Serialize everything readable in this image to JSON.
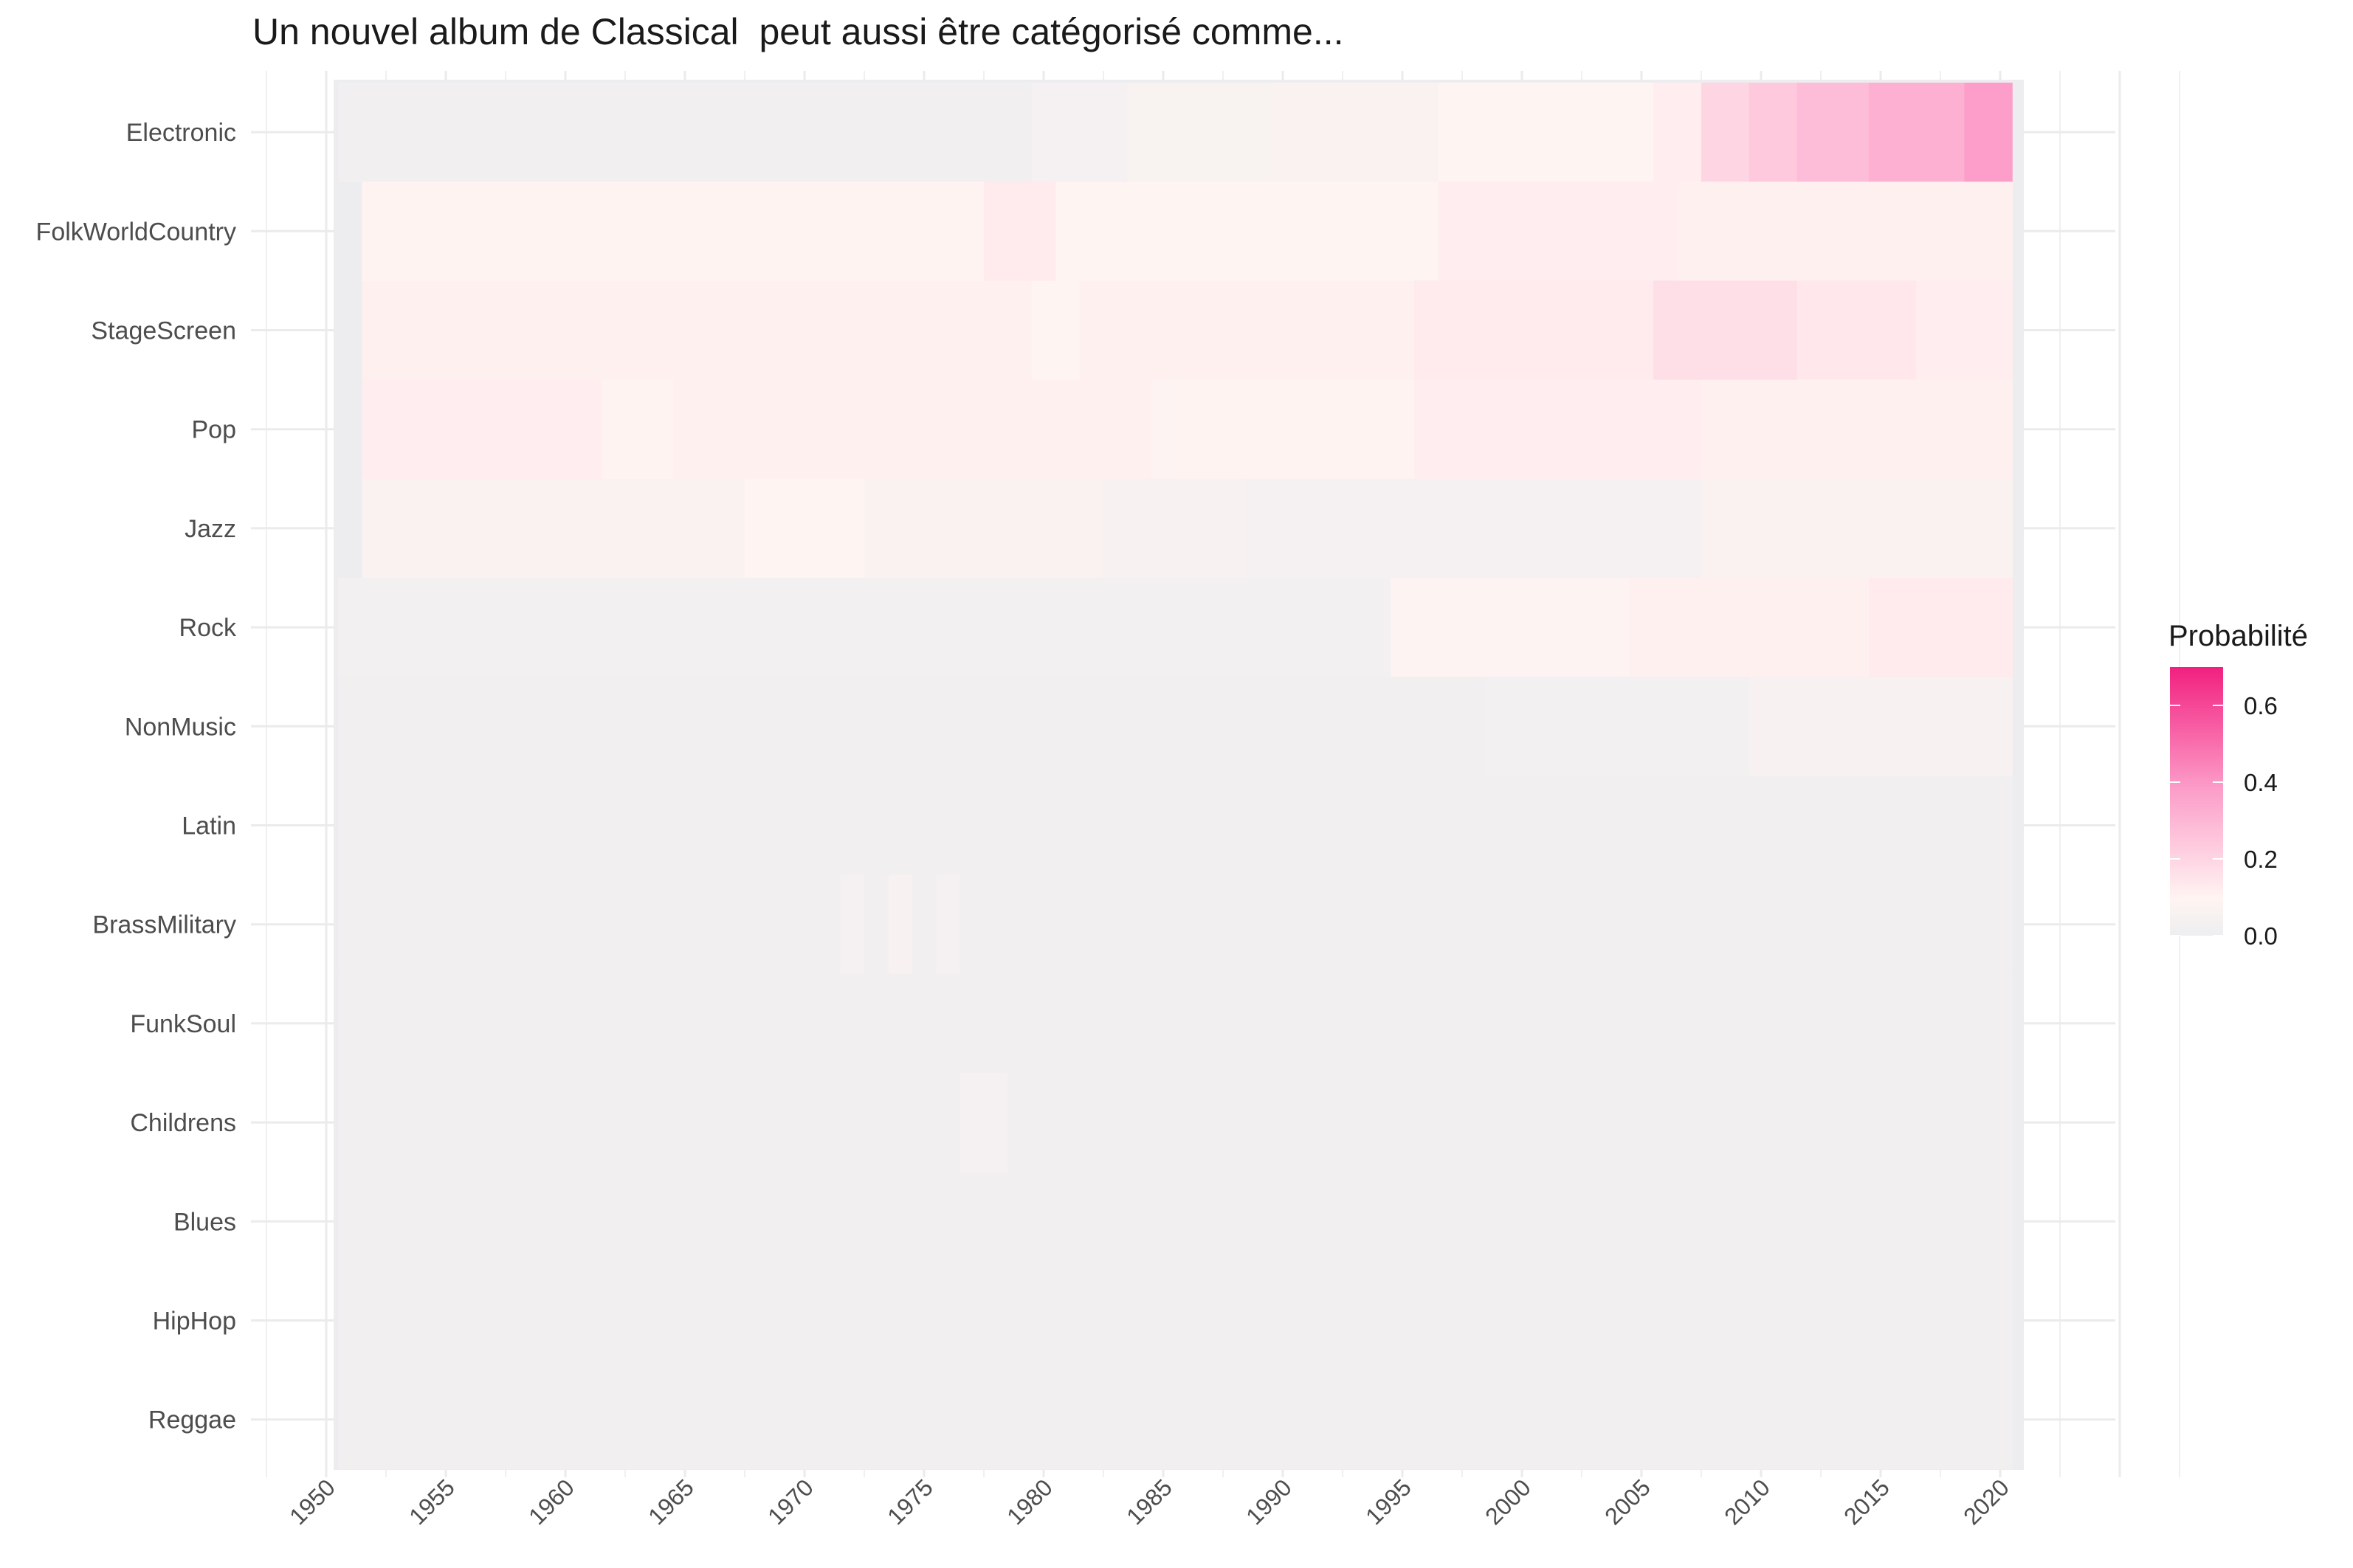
{
  "chart_data": {
    "type": "heatmap",
    "title": "Un nouvel album de Classical  peut aussi être catégorisé comme...",
    "xlabel": "",
    "ylabel": "",
    "x_ticks": [
      "1950",
      "1955",
      "1960",
      "1965",
      "1970",
      "1975",
      "1980",
      "1985",
      "1990",
      "1995",
      "2000",
      "2005",
      "2010",
      "2015",
      "2020"
    ],
    "x_range": [
      1951,
      2020
    ],
    "rows": [
      "Electronic",
      "FolkWorldCountry",
      "StageScreen",
      "Pop",
      "Jazz",
      "Rock",
      "NonMusic",
      "Latin",
      "BrassMilitary",
      "FunkSoul",
      "Childrens",
      "Blues",
      "HipHop",
      "Reggae"
    ],
    "legend": {
      "title": "Probabilité",
      "ticks": [
        "0.0",
        "0.2",
        "0.4",
        "0.6"
      ],
      "range": [
        0,
        0.7
      ],
      "position": "right"
    },
    "colors": {
      "low": "#eeeef0",
      "mid": "#fff4f2",
      "high": "#f2207f",
      "panel": "#ededf0",
      "grid": "#ebebeb"
    },
    "grid": true,
    "series": [
      {
        "name": "Electronic",
        "values": [
          {
            "from": 1951,
            "to": 1979,
            "p": 0.02
          },
          {
            "from": 1980,
            "to": 1983,
            "p": 0.04
          },
          {
            "from": 1984,
            "to": 1989,
            "p": 0.06
          },
          {
            "from": 1990,
            "to": 1996,
            "p": 0.07
          },
          {
            "from": 1997,
            "to": 2005,
            "p": 0.09
          },
          {
            "from": 2006,
            "to": 2007,
            "p": 0.12
          },
          {
            "from": 2008,
            "to": 2009,
            "p": 0.2
          },
          {
            "from": 2010,
            "to": 2011,
            "p": 0.24
          },
          {
            "from": 2012,
            "to": 2014,
            "p": 0.28
          },
          {
            "from": 2015,
            "to": 2018,
            "p": 0.32
          },
          {
            "from": 2019,
            "to": 2020,
            "p": 0.38
          }
        ]
      },
      {
        "name": "FolkWorldCountry",
        "values": [
          {
            "from": 1952,
            "to": 1977,
            "p": 0.1
          },
          {
            "from": 1978,
            "to": 1980,
            "p": 0.13
          },
          {
            "from": 1981,
            "to": 1996,
            "p": 0.09
          },
          {
            "from": 1997,
            "to": 2006,
            "p": 0.12
          },
          {
            "from": 2007,
            "to": 2020,
            "p": 0.11
          }
        ]
      },
      {
        "name": "StageScreen",
        "values": [
          {
            "from": 1952,
            "to": 1979,
            "p": 0.11
          },
          {
            "from": 1980,
            "to": 1981,
            "p": 0.09
          },
          {
            "from": 1982,
            "to": 1995,
            "p": 0.11
          },
          {
            "from": 1996,
            "to": 2005,
            "p": 0.13
          },
          {
            "from": 2006,
            "to": 2011,
            "p": 0.17
          },
          {
            "from": 2012,
            "to": 2016,
            "p": 0.14
          },
          {
            "from": 2017,
            "to": 2020,
            "p": 0.12
          }
        ]
      },
      {
        "name": "Pop",
        "values": [
          {
            "from": 1952,
            "to": 1961,
            "p": 0.12
          },
          {
            "from": 1962,
            "to": 1964,
            "p": 0.1
          },
          {
            "from": 1965,
            "to": 1984,
            "p": 0.11
          },
          {
            "from": 1985,
            "to": 1985,
            "p": 0.08
          },
          {
            "from": 1986,
            "to": 1995,
            "p": 0.1
          },
          {
            "from": 1996,
            "to": 2007,
            "p": 0.12
          },
          {
            "from": 2008,
            "to": 2020,
            "p": 0.11
          }
        ]
      },
      {
        "name": "Jazz",
        "values": [
          {
            "from": 1952,
            "to": 1967,
            "p": 0.07
          },
          {
            "from": 1968,
            "to": 1972,
            "p": 0.09
          },
          {
            "from": 1973,
            "to": 1982,
            "p": 0.07
          },
          {
            "from": 1983,
            "to": 1988,
            "p": 0.05
          },
          {
            "from": 1989,
            "to": 2007,
            "p": 0.04
          },
          {
            "from": 2008,
            "to": 2020,
            "p": 0.07
          }
        ]
      },
      {
        "name": "Rock",
        "values": [
          {
            "from": 1951,
            "to": 1994,
            "p": 0.03
          },
          {
            "from": 1995,
            "to": 2004,
            "p": 0.08
          },
          {
            "from": 2005,
            "to": 2014,
            "p": 0.11
          },
          {
            "from": 2015,
            "to": 2020,
            "p": 0.13
          }
        ]
      },
      {
        "name": "NonMusic",
        "values": [
          {
            "from": 1951,
            "to": 1998,
            "p": 0.02
          },
          {
            "from": 1999,
            "to": 2009,
            "p": 0.03
          },
          {
            "from": 2010,
            "to": 2020,
            "p": 0.05
          }
        ]
      },
      {
        "name": "Latin",
        "values": [
          {
            "from": 1951,
            "to": 2020,
            "p": 0.02
          }
        ]
      },
      {
        "name": "BrassMilitary",
        "values": [
          {
            "from": 1951,
            "to": 1971,
            "p": 0.02
          },
          {
            "from": 1972,
            "to": 1972,
            "p": 0.04
          },
          {
            "from": 1973,
            "to": 1973,
            "p": 0.02
          },
          {
            "from": 1974,
            "to": 1974,
            "p": 0.05
          },
          {
            "from": 1975,
            "to": 1975,
            "p": 0.02
          },
          {
            "from": 1976,
            "to": 1976,
            "p": 0.04
          },
          {
            "from": 1977,
            "to": 2020,
            "p": 0.02
          }
        ]
      },
      {
        "name": "FunkSoul",
        "values": [
          {
            "from": 1951,
            "to": 2020,
            "p": 0.02
          }
        ]
      },
      {
        "name": "Childrens",
        "values": [
          {
            "from": 1951,
            "to": 1976,
            "p": 0.02
          },
          {
            "from": 1977,
            "to": 1978,
            "p": 0.04
          },
          {
            "from": 1979,
            "to": 2020,
            "p": 0.02
          }
        ]
      },
      {
        "name": "Blues",
        "values": [
          {
            "from": 1951,
            "to": 2020,
            "p": 0.02
          }
        ]
      },
      {
        "name": "HipHop",
        "values": [
          {
            "from": 1951,
            "to": 2020,
            "p": 0.02
          }
        ]
      },
      {
        "name": "Reggae",
        "values": [
          {
            "from": 1951,
            "to": 2020,
            "p": 0.02
          }
        ]
      }
    ]
  }
}
